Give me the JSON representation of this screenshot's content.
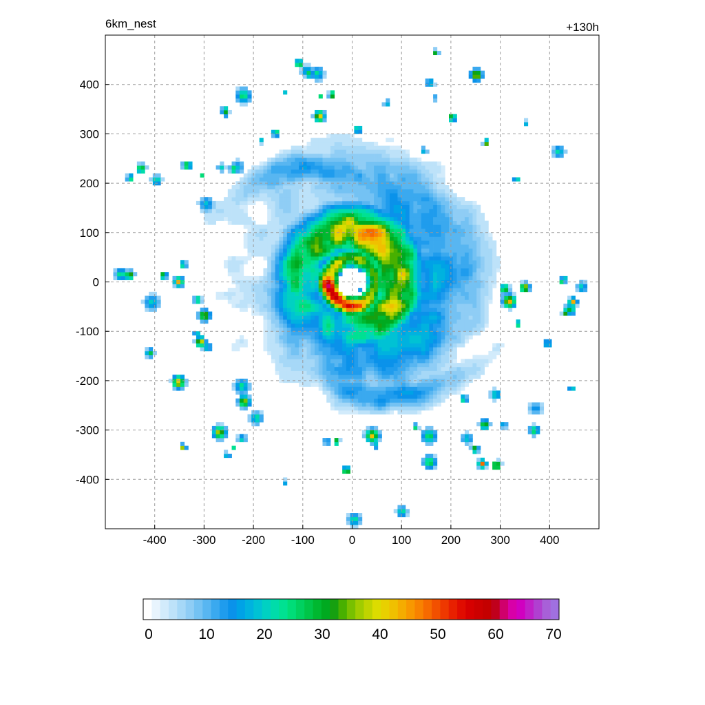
{
  "chart_data": {
    "type": "heatmap",
    "title": "",
    "left_label": "6km_nest",
    "right_label": "+130h",
    "xlabel": "",
    "ylabel": "",
    "xlim": [
      -500,
      500
    ],
    "ylim": [
      -500,
      500
    ],
    "x_ticks": [
      -400,
      -300,
      -200,
      -100,
      0,
      100,
      200,
      300,
      400
    ],
    "y_ticks": [
      400,
      300,
      200,
      100,
      0,
      -100,
      -200,
      -300,
      -400
    ],
    "x_tick_labels": [
      "-400",
      "-300",
      "-200",
      "-100",
      "0",
      "100",
      "200",
      "300",
      "400"
    ],
    "y_tick_labels": [
      "400",
      "300",
      "200",
      "100",
      "0",
      "-100",
      "-200",
      "-300",
      "-400"
    ],
    "grid": true,
    "grid_style": "dashed",
    "field": {
      "center": [
        0,
        0
      ],
      "eye_radius": 32,
      "max_value": 52,
      "description_values": {
        "eyewall_peak": 52,
        "inner_band": 40,
        "outer_band": 15
      }
    },
    "colorbar": {
      "min": 0,
      "max": 70,
      "tick_values": [
        0,
        10,
        20,
        30,
        40,
        50,
        60,
        70
      ],
      "tick_labels": [
        "0",
        "10",
        "20",
        "30",
        "40",
        "50",
        "60",
        "70"
      ],
      "colors": [
        "#ffffff",
        "#e8f4fd",
        "#d2ebfb",
        "#bde2f9",
        "#a6d8f7",
        "#8fcdf5",
        "#74c2f3",
        "#58b6f1",
        "#3aa9ef",
        "#1f9ced",
        "#0a92ea",
        "#00a2e6",
        "#00b2df",
        "#00c2d4",
        "#00d1c2",
        "#00dcaa",
        "#00e192",
        "#00dd78",
        "#00d160",
        "#00c548",
        "#00b830",
        "#00aa20",
        "#16a010",
        "#48b000",
        "#78c000",
        "#a0cc00",
        "#c0d400",
        "#dcdc00",
        "#e8d000",
        "#f0c000",
        "#f5ac00",
        "#f89800",
        "#f88200",
        "#f66a00",
        "#f25000",
        "#ee3800",
        "#e82000",
        "#e00c00",
        "#d60000",
        "#cc0000",
        "#c40000",
        "#c0001c",
        "#d0006c",
        "#d800a8",
        "#d000c0",
        "#c020c8",
        "#b040d0",
        "#a860d8",
        "#a070e0"
      ]
    },
    "cells": {
      "resolution_km": 8
    }
  }
}
